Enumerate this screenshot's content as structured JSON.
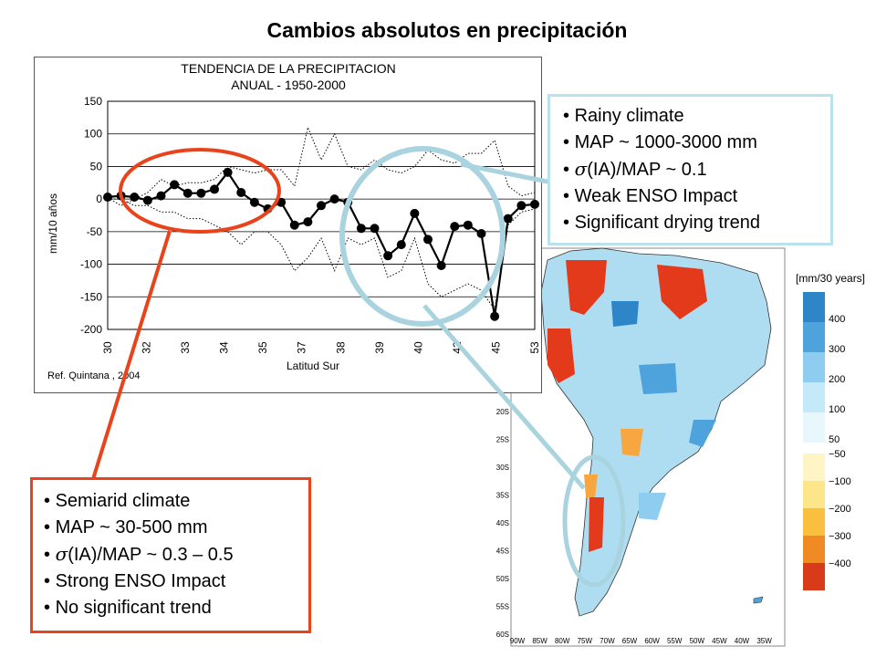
{
  "page": {
    "title": "Cambios absolutos en precipitación"
  },
  "chart_data": {
    "type": "line",
    "title_line1": "TENDENCIA DE LA PRECIPITACION",
    "title_line2": "ANUAL - 1950-2000",
    "ylabel": "mm/10 años",
    "xlabel": "Latitud Sur",
    "ylim": [
      -200,
      150
    ],
    "yticks": [
      150,
      100,
      50,
      0,
      -50,
      -100,
      -150,
      -200
    ],
    "xticks": [
      "30",
      "32",
      "33",
      "34",
      "35",
      "37",
      "38",
      "39",
      "40",
      "42",
      "45",
      "53"
    ],
    "grid": true,
    "reference": "Ref.  Quintana , 2004",
    "series": [
      {
        "style": "solid-markers",
        "values": [
          3,
          5,
          3,
          -2,
          5,
          22,
          9,
          9,
          15,
          41,
          10,
          -5,
          -15,
          -5,
          -40,
          -35,
          -10,
          0,
          -5,
          -45,
          -45,
          -87,
          -70,
          -22,
          -62,
          -102,
          -42,
          -40,
          -53,
          -180,
          -30,
          -10,
          -8
        ]
      },
      {
        "style": "dotted",
        "values": [
          2,
          -10,
          0,
          10,
          30,
          20,
          25,
          25,
          30,
          50,
          45,
          40,
          45,
          45,
          20,
          110,
          60,
          100,
          50,
          45,
          60,
          45,
          40,
          50,
          75,
          60,
          55,
          70,
          70,
          90,
          20,
          5,
          10
        ]
      },
      {
        "style": "dotted",
        "values": [
          0,
          0,
          -10,
          -10,
          -20,
          -20,
          -30,
          -30,
          -40,
          -50,
          -70,
          -50,
          -50,
          -70,
          -110,
          -90,
          -60,
          -110,
          -60,
          -70,
          -60,
          -120,
          -110,
          -60,
          -130,
          -150,
          -140,
          -130,
          -140,
          -170,
          -40,
          -20,
          -15
        ]
      }
    ]
  },
  "rainy_callout": {
    "items": [
      "Rainy climate",
      "MAP ~ 1000-3000 mm",
      "(IA)/MAP ~ 0.1",
      "Weak ENSO Impact",
      "Significant drying trend"
    ],
    "sigma": "σ"
  },
  "semiarid_callout": {
    "items": [
      "Semiarid climate",
      "MAP ~ 30-500 mm",
      "(IA)/MAP ~ 0.3 – 0.5",
      "Strong ENSO Impact",
      "No significant trend"
    ],
    "sigma": "σ"
  },
  "map": {
    "units": "[mm/30 years]",
    "lat_labels": [
      "20S",
      "25S",
      "30S",
      "35S",
      "40S",
      "45S",
      "50S",
      "55S",
      "60S"
    ],
    "lon_labels": [
      "90W",
      "85W",
      "80W",
      "75W",
      "70W",
      "65W",
      "60W",
      "55W",
      "50W",
      "45W",
      "40W",
      "35W"
    ],
    "legend_pos": [
      {
        "label": "400",
        "color": "#2e86c8"
      },
      {
        "label": "300",
        "color": "#4fa3dc"
      },
      {
        "label": "200",
        "color": "#8ecdf0"
      },
      {
        "label": "100",
        "color": "#c4e9f8"
      },
      {
        "label": "50",
        "color": "#e8f7fc"
      }
    ],
    "legend_neg": [
      {
        "label": "−50",
        "color": "#fff5c4"
      },
      {
        "label": "−100",
        "color": "#fde68a"
      },
      {
        "label": "−200",
        "color": "#fbbf3f"
      },
      {
        "label": "−300",
        "color": "#f08a24"
      },
      {
        "label": "−400",
        "color": "#d93a1a"
      }
    ],
    "colors": {
      "land_positive": "#aeddf2",
      "dry_strong": "#e23a1a",
      "dry_mid": "#f7a640"
    },
    "highlight_colors": {
      "rainy": "#a9d3de",
      "semiarid": "#e8431b"
    }
  }
}
